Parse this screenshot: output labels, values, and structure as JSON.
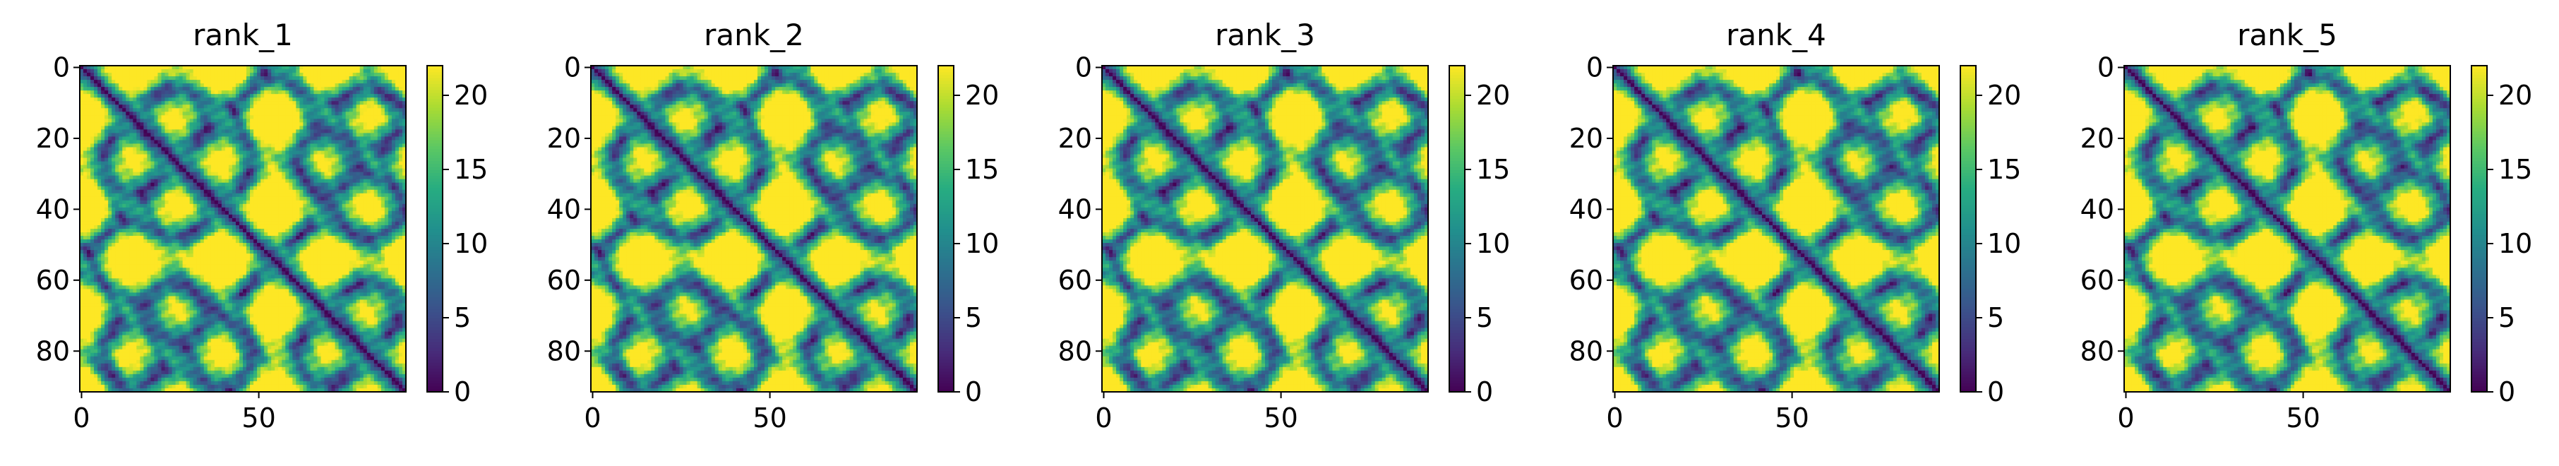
{
  "chart_data": {
    "type": "heatmap",
    "n": 92,
    "colormap": "viridis",
    "clim": [
      0,
      22
    ],
    "colorbar_ticks": [
      "0",
      "5",
      "10",
      "15",
      "20"
    ],
    "x_ticks": [
      "0",
      "50"
    ],
    "y_ticks": [
      "0",
      "20",
      "40",
      "60",
      "80"
    ],
    "panels": [
      {
        "title": "rank_1"
      },
      {
        "title": "rank_2"
      },
      {
        "title": "rank_3"
      },
      {
        "title": "rank_4"
      },
      {
        "title": "rank_5"
      }
    ]
  }
}
